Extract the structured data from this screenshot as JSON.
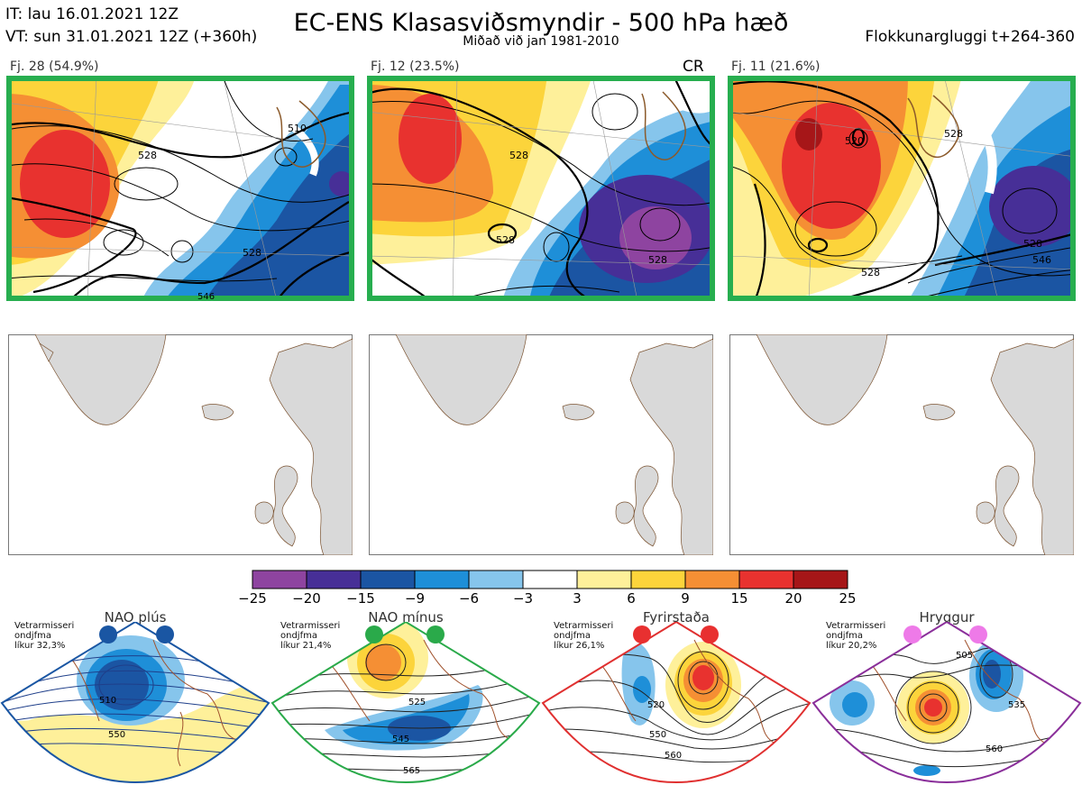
{
  "header": {
    "it_line": "IT: lau 16.01.2021 12Z",
    "vt_line": "VT: sun 31.01.2021 12Z  (+360h)",
    "title": "EC-ENS Klasasviðsmyndir - 500 hPa hæð",
    "subtitle": "Miðað við jan 1981-2010",
    "window": "Flokkunargluggi t+264-360"
  },
  "panels": [
    {
      "label": "Fj. 28 (54.9%)",
      "extra": "",
      "frame_color": "#27ae4f",
      "contours": [
        "510",
        "528",
        "528",
        "546"
      ]
    },
    {
      "label": "Fj. 12 (23.5%)",
      "extra": "CR",
      "frame_color": "#27ae4f",
      "contours": [
        "528",
        "528",
        "528"
      ]
    },
    {
      "label": "Fj. 11 (21.6%)",
      "extra": "",
      "frame_color": "#27ae4f",
      "contours": [
        "520",
        "528",
        "528",
        "528",
        "546"
      ]
    }
  ],
  "colorbar": {
    "ticks": [
      "−25",
      "−20",
      "−15",
      "−9",
      "−6",
      "−3",
      "3",
      "6",
      "9",
      "15",
      "20",
      "25"
    ],
    "colors": [
      "#8e44a0",
      "#472f97",
      "#1b55a3",
      "#1e8fd8",
      "#86c5ec",
      "#ffffff",
      "#fef09a",
      "#fcd43b",
      "#f58f34",
      "#e8322f",
      "#a61618"
    ]
  },
  "regimes": [
    {
      "name": "NAO plús",
      "note": [
        "Vetrarmisseri",
        "ondjfma",
        "líkur 32,3%"
      ],
      "color": "#1a56a3",
      "dot_color": "#1a56a3",
      "contours": [
        "510",
        "550"
      ]
    },
    {
      "name": "NAO mínus",
      "note": [
        "Vetrarmisseri",
        "ondjfma",
        "líkur 21,4%"
      ],
      "color": "#2aaa4a",
      "dot_color": "#2aaa4a",
      "contours": [
        "525",
        "545",
        "565"
      ]
    },
    {
      "name": "Fyrirstaða",
      "note": [
        "Vetrarmisseri",
        "ondjfma",
        "líkur 26,1%"
      ],
      "color": "#e03030",
      "dot_color": "#e83030",
      "contours": [
        "520",
        "550",
        "560"
      ]
    },
    {
      "name": "Hryggur",
      "note": [
        "Vetrarmisseri",
        "ondjfma",
        "líkur 20,2%"
      ],
      "color": "#8a2f9a",
      "dot_color": "#ee7ae8",
      "contours": [
        "505",
        "535",
        "560"
      ]
    }
  ]
}
